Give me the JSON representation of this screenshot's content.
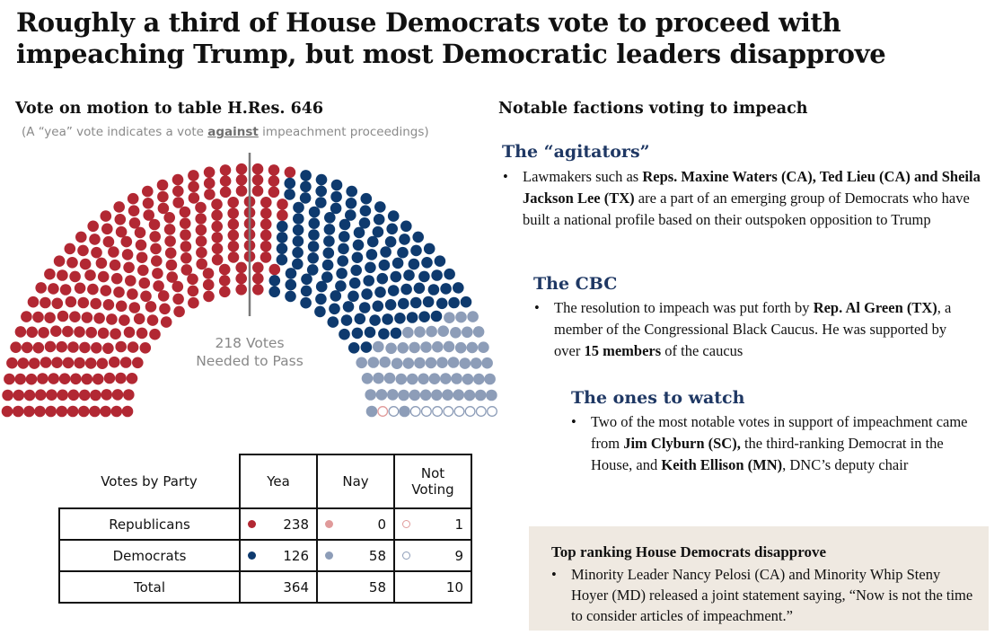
{
  "title": "Roughly a third of House Democrats vote to proceed with impeaching Trump, but most Democratic leaders disapprove",
  "left": {
    "heading": "Vote on motion to table H.Res.  646",
    "note_pre": "(A “yea” vote indicates a vote ",
    "note_em": "against",
    "note_post": " impeachment proceedings)",
    "threshold_label": "218 Votes Needed to Pass"
  },
  "chart_data": {
    "type": "parliament",
    "total_seats": 432,
    "threshold": 218,
    "groups": [
      {
        "party": "Republicans",
        "vote": "Yea",
        "count": 238,
        "color": "#b22833",
        "fill": true
      },
      {
        "party": "Democrats",
        "vote": "Yea",
        "count": 126,
        "color": "#0e3a6e",
        "fill": true
      },
      {
        "party": "Democrats",
        "vote": "Nay",
        "count": 58,
        "color": "#8d9db8",
        "fill": true
      },
      {
        "party": "Republicans",
        "vote": "Nay",
        "count": 0,
        "color": "#e09a9a",
        "fill": true
      },
      {
        "party": "Republicans",
        "vote": "Not Voting",
        "count": 1,
        "color": "#e09a9a",
        "fill": false
      },
      {
        "party": "Democrats",
        "vote": "Not Voting",
        "count": 9,
        "color": "#8d9db8",
        "fill": false
      }
    ]
  },
  "table": {
    "headers": [
      "Votes by Party",
      "Yea",
      "Nay",
      "Not Voting"
    ],
    "rows": [
      {
        "label": "Republicans",
        "yea": "238",
        "nay": "0",
        "nv": "1",
        "colors": [
          "#b22833",
          "#e09a9a",
          "#e09a9a"
        ]
      },
      {
        "label": "Democrats",
        "yea": "126",
        "nay": "58",
        "nv": "9",
        "colors": [
          "#0e3a6e",
          "#8d9db8",
          "#8d9db8"
        ]
      },
      {
        "label": "Total",
        "yea": "364",
        "nay": "58",
        "nv": "10"
      }
    ]
  },
  "right": {
    "heading": "Notable factions voting to impeach",
    "sections": [
      {
        "title": "The “agitators”",
        "bullet": [
          {
            "t": "Lawmakers such as "
          },
          {
            "t": "Reps. Maxine Waters (CA), Ted Lieu (CA) and Sheila Jackson Lee (TX)",
            "b": true
          },
          {
            "t": " are a part of an emerging group of Democrats who have built a national profile based on their outspoken opposition to Trump"
          }
        ]
      },
      {
        "title": "The CBC",
        "bullet": [
          {
            "t": "The resolution to impeach was put forth by "
          },
          {
            "t": "Rep. Al Green (TX)",
            "b": true
          },
          {
            "t": ", a member of the Congressional Black Caucus. He was supported by over "
          },
          {
            "t": "15 members",
            "b": true
          },
          {
            "t": " of the caucus"
          }
        ]
      },
      {
        "title": "The ones to watch",
        "bullet": [
          {
            "t": "Two of the most notable votes in support of impeachment came from "
          },
          {
            "t": "Jim Clyburn (SC),",
            "b": true
          },
          {
            "t": " the third-ranking Democrat in the House, and "
          },
          {
            "t": "Keith Ellison (MN)",
            "b": true
          },
          {
            "t": ", DNC’s deputy chair"
          }
        ]
      }
    ],
    "callout": {
      "title": "Top ranking House Democrats disapprove",
      "bullet": [
        {
          "t": "Minority Leader Nancy Pelosi (CA) and Minority Whip Steny Hoyer (MD) released a joint statement saying, “Now is not the time to consider articles of impeachment.”"
        }
      ]
    },
    "bullet_char": "•"
  }
}
